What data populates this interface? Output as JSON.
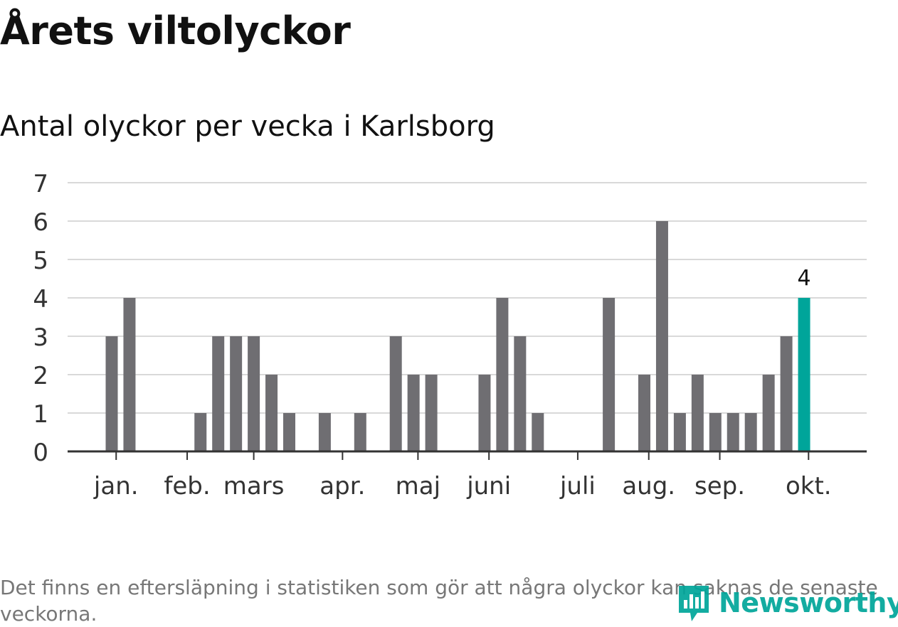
{
  "title": "Årets viltolyckor",
  "subtitle": "Antal olyckor per vecka i Karlsborg",
  "footnote": "Det finns en eftersläpning i statistiken som gör att några olyckor kan saknas de senaste veckorna.",
  "logo": {
    "text": "Newsworthy",
    "icon": "bar-chart-speech-bubble-icon"
  },
  "colors": {
    "bar": "#6f6e72",
    "highlight": "#00a59a",
    "grid": "#d9d9d9",
    "axis": "#333333",
    "tick_text": "#333333",
    "logo": "#00a59a"
  },
  "chart_data": {
    "type": "bar",
    "title": "Antal olyckor per vecka i Karlsborg",
    "xlabel": "",
    "ylabel": "",
    "ylim": [
      0,
      7
    ],
    "yticks": [
      0,
      1,
      2,
      3,
      4,
      5,
      6,
      7
    ],
    "grid": true,
    "values": [
      3,
      4,
      0,
      0,
      0,
      1,
      3,
      3,
      3,
      2,
      1,
      0,
      1,
      0,
      1,
      0,
      3,
      2,
      2,
      0,
      0,
      2,
      4,
      3,
      1,
      0,
      0,
      0,
      4,
      0,
      2,
      6,
      1,
      2,
      1,
      1,
      1,
      2,
      3,
      4
    ],
    "highlight_index": 39,
    "highlight_label": "4",
    "month_ticks": [
      {
        "label": "jan.",
        "index": 0.25
      },
      {
        "label": "feb.",
        "index": 4.25
      },
      {
        "label": "mars",
        "index": 8
      },
      {
        "label": "apr.",
        "index": 13
      },
      {
        "label": "maj",
        "index": 17.25
      },
      {
        "label": "juni",
        "index": 21.25
      },
      {
        "label": "juli",
        "index": 26.25
      },
      {
        "label": "aug.",
        "index": 30.25
      },
      {
        "label": "sep.",
        "index": 34.25
      },
      {
        "label": "okt.",
        "index": 39.25
      }
    ]
  }
}
